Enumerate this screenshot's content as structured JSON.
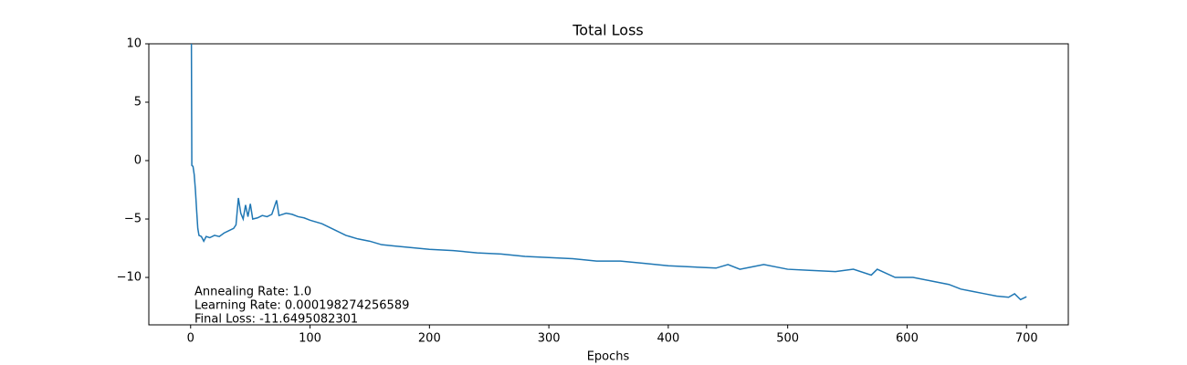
{
  "chart_data": {
    "type": "line",
    "title": "Total Loss",
    "x_label": "Epochs",
    "annotations": [
      "Annealing Rate: 1.0",
      "Learning Rate: 0.000198274256589",
      "Final Loss: -11.6495082301"
    ],
    "xlim": [
      -35,
      735
    ],
    "ylim": [
      -14.06,
      10
    ],
    "xticks": [
      0,
      100,
      200,
      300,
      400,
      500,
      600,
      700
    ],
    "yticks": [
      {
        "value": -10,
        "label": "−10"
      },
      {
        "value": -5,
        "label": "−5"
      },
      0,
      5,
      10
    ],
    "x": [
      0,
      1,
      2,
      3,
      4,
      5,
      6,
      7,
      9,
      11,
      13,
      16,
      20,
      24,
      28,
      32,
      36,
      38,
      40,
      42,
      44,
      46,
      48,
      50,
      52,
      56,
      60,
      64,
      68,
      72,
      74,
      80,
      85,
      90,
      95,
      100,
      110,
      120,
      130,
      140,
      150,
      160,
      170,
      180,
      200,
      220,
      240,
      260,
      280,
      300,
      320,
      340,
      360,
      380,
      400,
      420,
      440,
      450,
      460,
      470,
      480,
      500,
      520,
      540,
      555,
      570,
      575,
      590,
      605,
      620,
      635,
      645,
      655,
      665,
      675,
      685,
      690,
      695,
      700
    ],
    "series": [
      {
        "name": "Total Loss",
        "color": "#1f77b4",
        "values": [
          30,
          -0.4,
          -0.5,
          -1.2,
          -2.5,
          -4.2,
          -5.8,
          -6.4,
          -6.5,
          -6.9,
          -6.5,
          -6.6,
          -6.4,
          -6.5,
          -6.2,
          -6.0,
          -5.8,
          -5.5,
          -3.2,
          -4.5,
          -5.0,
          -3.8,
          -4.8,
          -3.7,
          -5.0,
          -4.9,
          -4.7,
          -4.8,
          -4.6,
          -3.4,
          -4.7,
          -4.5,
          -4.6,
          -4.8,
          -4.9,
          -5.1,
          -5.4,
          -5.9,
          -6.4,
          -6.7,
          -6.9,
          -7.2,
          -7.3,
          -7.4,
          -7.6,
          -7.7,
          -7.9,
          -8.0,
          -8.2,
          -8.3,
          -8.4,
          -8.6,
          -8.6,
          -8.8,
          -9.0,
          -9.1,
          -9.2,
          -8.9,
          -9.3,
          -9.1,
          -8.9,
          -9.3,
          -9.4,
          -9.5,
          -9.3,
          -9.8,
          -9.3,
          -10.0,
          -10.0,
          -10.3,
          -10.6,
          -11.0,
          -11.2,
          -11.4,
          -11.6,
          -11.7,
          -11.4,
          -11.9,
          -11.65
        ]
      }
    ]
  }
}
